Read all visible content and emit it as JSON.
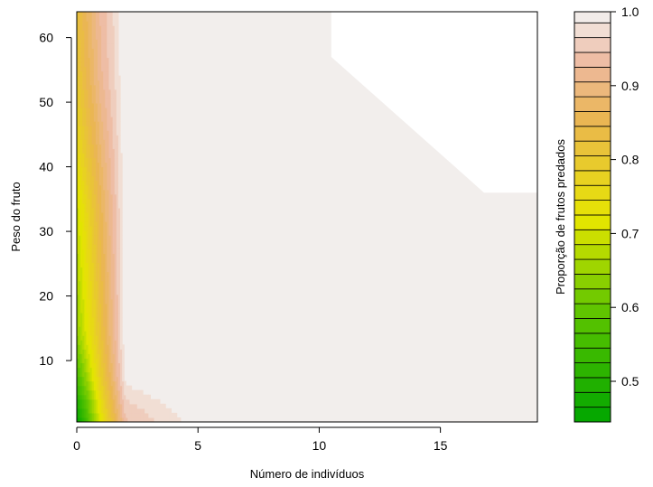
{
  "chart_data": {
    "type": "heatmap",
    "subtype": "filled-contour",
    "xlabel": "Número de indivíduos",
    "ylabel": "Peso do fruto",
    "colorbar_label": "Proporção de frutos predados",
    "xlim": [
      0,
      19
    ],
    "ylim": [
      0.5,
      64
    ],
    "x_ticks": [
      "0",
      "5",
      "10",
      "15"
    ],
    "x_tick_values": [
      0,
      5,
      10,
      15
    ],
    "y_ticks": [
      "10",
      "20",
      "30",
      "40",
      "50",
      "60"
    ],
    "y_tick_values": [
      10,
      20,
      30,
      40,
      50,
      60
    ],
    "z_range": [
      0.445,
      1.0
    ],
    "z_ticks": [
      "0.5",
      "0.6",
      "0.7",
      "0.8",
      "0.9",
      "1.0"
    ],
    "z_tick_values": [
      0.5,
      0.6,
      0.7,
      0.8,
      0.9,
      1.0
    ],
    "level_step": 0.02,
    "color_ramp": [
      {
        "z": 0.445,
        "color": "#00A600"
      },
      {
        "z": 0.6,
        "color": "#63C600"
      },
      {
        "z": 0.72,
        "color": "#E6E600"
      },
      {
        "z": 0.85,
        "color": "#EAB64E"
      },
      {
        "z": 0.93,
        "color": "#EEB99F"
      },
      {
        "z": 1.0,
        "color": "#F2F2F2"
      }
    ],
    "blank_region": [
      [
        10.5,
        64
      ],
      [
        19,
        64
      ],
      [
        19,
        36
      ],
      [
        16.8,
        36
      ],
      [
        10.5,
        57
      ]
    ],
    "fine_grid": {
      "x_max": 2.1,
      "y_min": 0.5,
      "y_max": 7.5,
      "x_samples": 48,
      "y_samples": 24
    },
    "coarse_grid": {
      "x": [
        0,
        1,
        2,
        3,
        4,
        5,
        6,
        7,
        8,
        9,
        10,
        11,
        12,
        13,
        14,
        15,
        16,
        17,
        18,
        19
      ],
      "y": [
        0.5,
        7.5,
        14,
        24,
        34,
        44,
        54,
        64
      ],
      "z_rows": [
        [
          0.44,
          0.72,
          0.94,
          0.96,
          0.975,
          0.99,
          1.0,
          1.0,
          1.0,
          1.0,
          1.0,
          1.0,
          1.0,
          1.0,
          1.0,
          1.0,
          1.0,
          1.0,
          1.0,
          1.0
        ],
        [
          0.56,
          0.79,
          0.99,
          0.995,
          1.0,
          1.0,
          1.0,
          1.0,
          1.0,
          1.0,
          1.0,
          1.0,
          1.0,
          1.0,
          1.0,
          1.0,
          1.0,
          1.0,
          1.0,
          1.0
        ],
        [
          0.64,
          0.82,
          1.0,
          1.0,
          1.0,
          1.0,
          1.0,
          1.0,
          1.0,
          1.0,
          1.0,
          1.0,
          1.0,
          1.0,
          1.0,
          1.0,
          1.0,
          1.0,
          1.0,
          1.0
        ],
        [
          0.67,
          0.84,
          1.0,
          1.0,
          1.0,
          1.0,
          1.0,
          1.0,
          1.0,
          1.0,
          1.0,
          1.0,
          1.0,
          1.0,
          1.0,
          1.0,
          1.0,
          1.0,
          1.0,
          1.0
        ],
        [
          0.7,
          0.86,
          1.0,
          1.0,
          1.0,
          1.0,
          1.0,
          1.0,
          1.0,
          1.0,
          1.0,
          1.0,
          1.0,
          1.0,
          1.0,
          1.0,
          1.0,
          1.0,
          1.0,
          1.0
        ],
        [
          0.76,
          0.89,
          1.0,
          1.0,
          1.0,
          1.0,
          1.0,
          1.0,
          1.0,
          1.0,
          1.0,
          1.0,
          1.0,
          1.0,
          1.0,
          1.0,
          1.0,
          1.0,
          1.0,
          1.0
        ],
        [
          0.8,
          0.92,
          1.0,
          1.0,
          1.0,
          1.0,
          1.0,
          1.0,
          1.0,
          1.0,
          1.0,
          1.0,
          1.0,
          1.0,
          1.0,
          1.0,
          1.0,
          1.0,
          1.0,
          1.0
        ],
        [
          0.82,
          0.93,
          1.0,
          1.0,
          1.0,
          1.0,
          1.0,
          1.0,
          1.0,
          1.0,
          1.0,
          1.0,
          1.0,
          1.0,
          1.0,
          1.0,
          1.0,
          1.0,
          1.0,
          1.0
        ]
      ]
    },
    "blank_color": "#FFFFFF",
    "grid": false,
    "legend": "colorbar-right"
  }
}
